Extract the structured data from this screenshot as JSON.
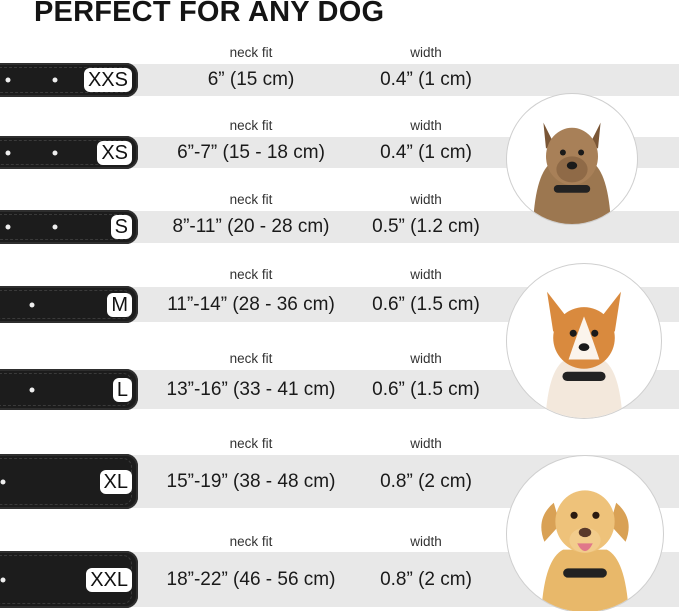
{
  "title": "PERFECT FOR ANY DOG",
  "column_labels": {
    "neck_fit": "neck fit",
    "width": "width"
  },
  "sizes": [
    {
      "size": "XXS",
      "neck_fit": "6” (15 cm)",
      "width": "0.4” (1 cm)"
    },
    {
      "size": "XS",
      "neck_fit": "6”-7” (15 - 18 cm)",
      "width": "0.4” (1 cm)"
    },
    {
      "size": "S",
      "neck_fit": "8”-11” (20 - 28 cm)",
      "width": "0.5” (1.2 cm)"
    },
    {
      "size": "M",
      "neck_fit": "11”-14” (28 - 36 cm)",
      "width": "0.6” (1.5 cm)"
    },
    {
      "size": "L",
      "neck_fit": "13”-16” (33 - 41 cm)",
      "width": "0.6” (1.5 cm)"
    },
    {
      "size": "XL",
      "neck_fit": "15”-19” (38 - 48 cm)",
      "width": "0.8” (2 cm)"
    },
    {
      "size": "XXL",
      "neck_fit": "18”-22” (46 - 56 cm)",
      "width": "0.8” (2 cm)"
    }
  ],
  "images": [
    "small-terrier-dog-photo",
    "corgi-dog-photo",
    "labrador-dog-photo"
  ],
  "colors": {
    "band": "#e8e8e8",
    "collar": "#1c1c1c",
    "text": "#1e1e1e"
  }
}
